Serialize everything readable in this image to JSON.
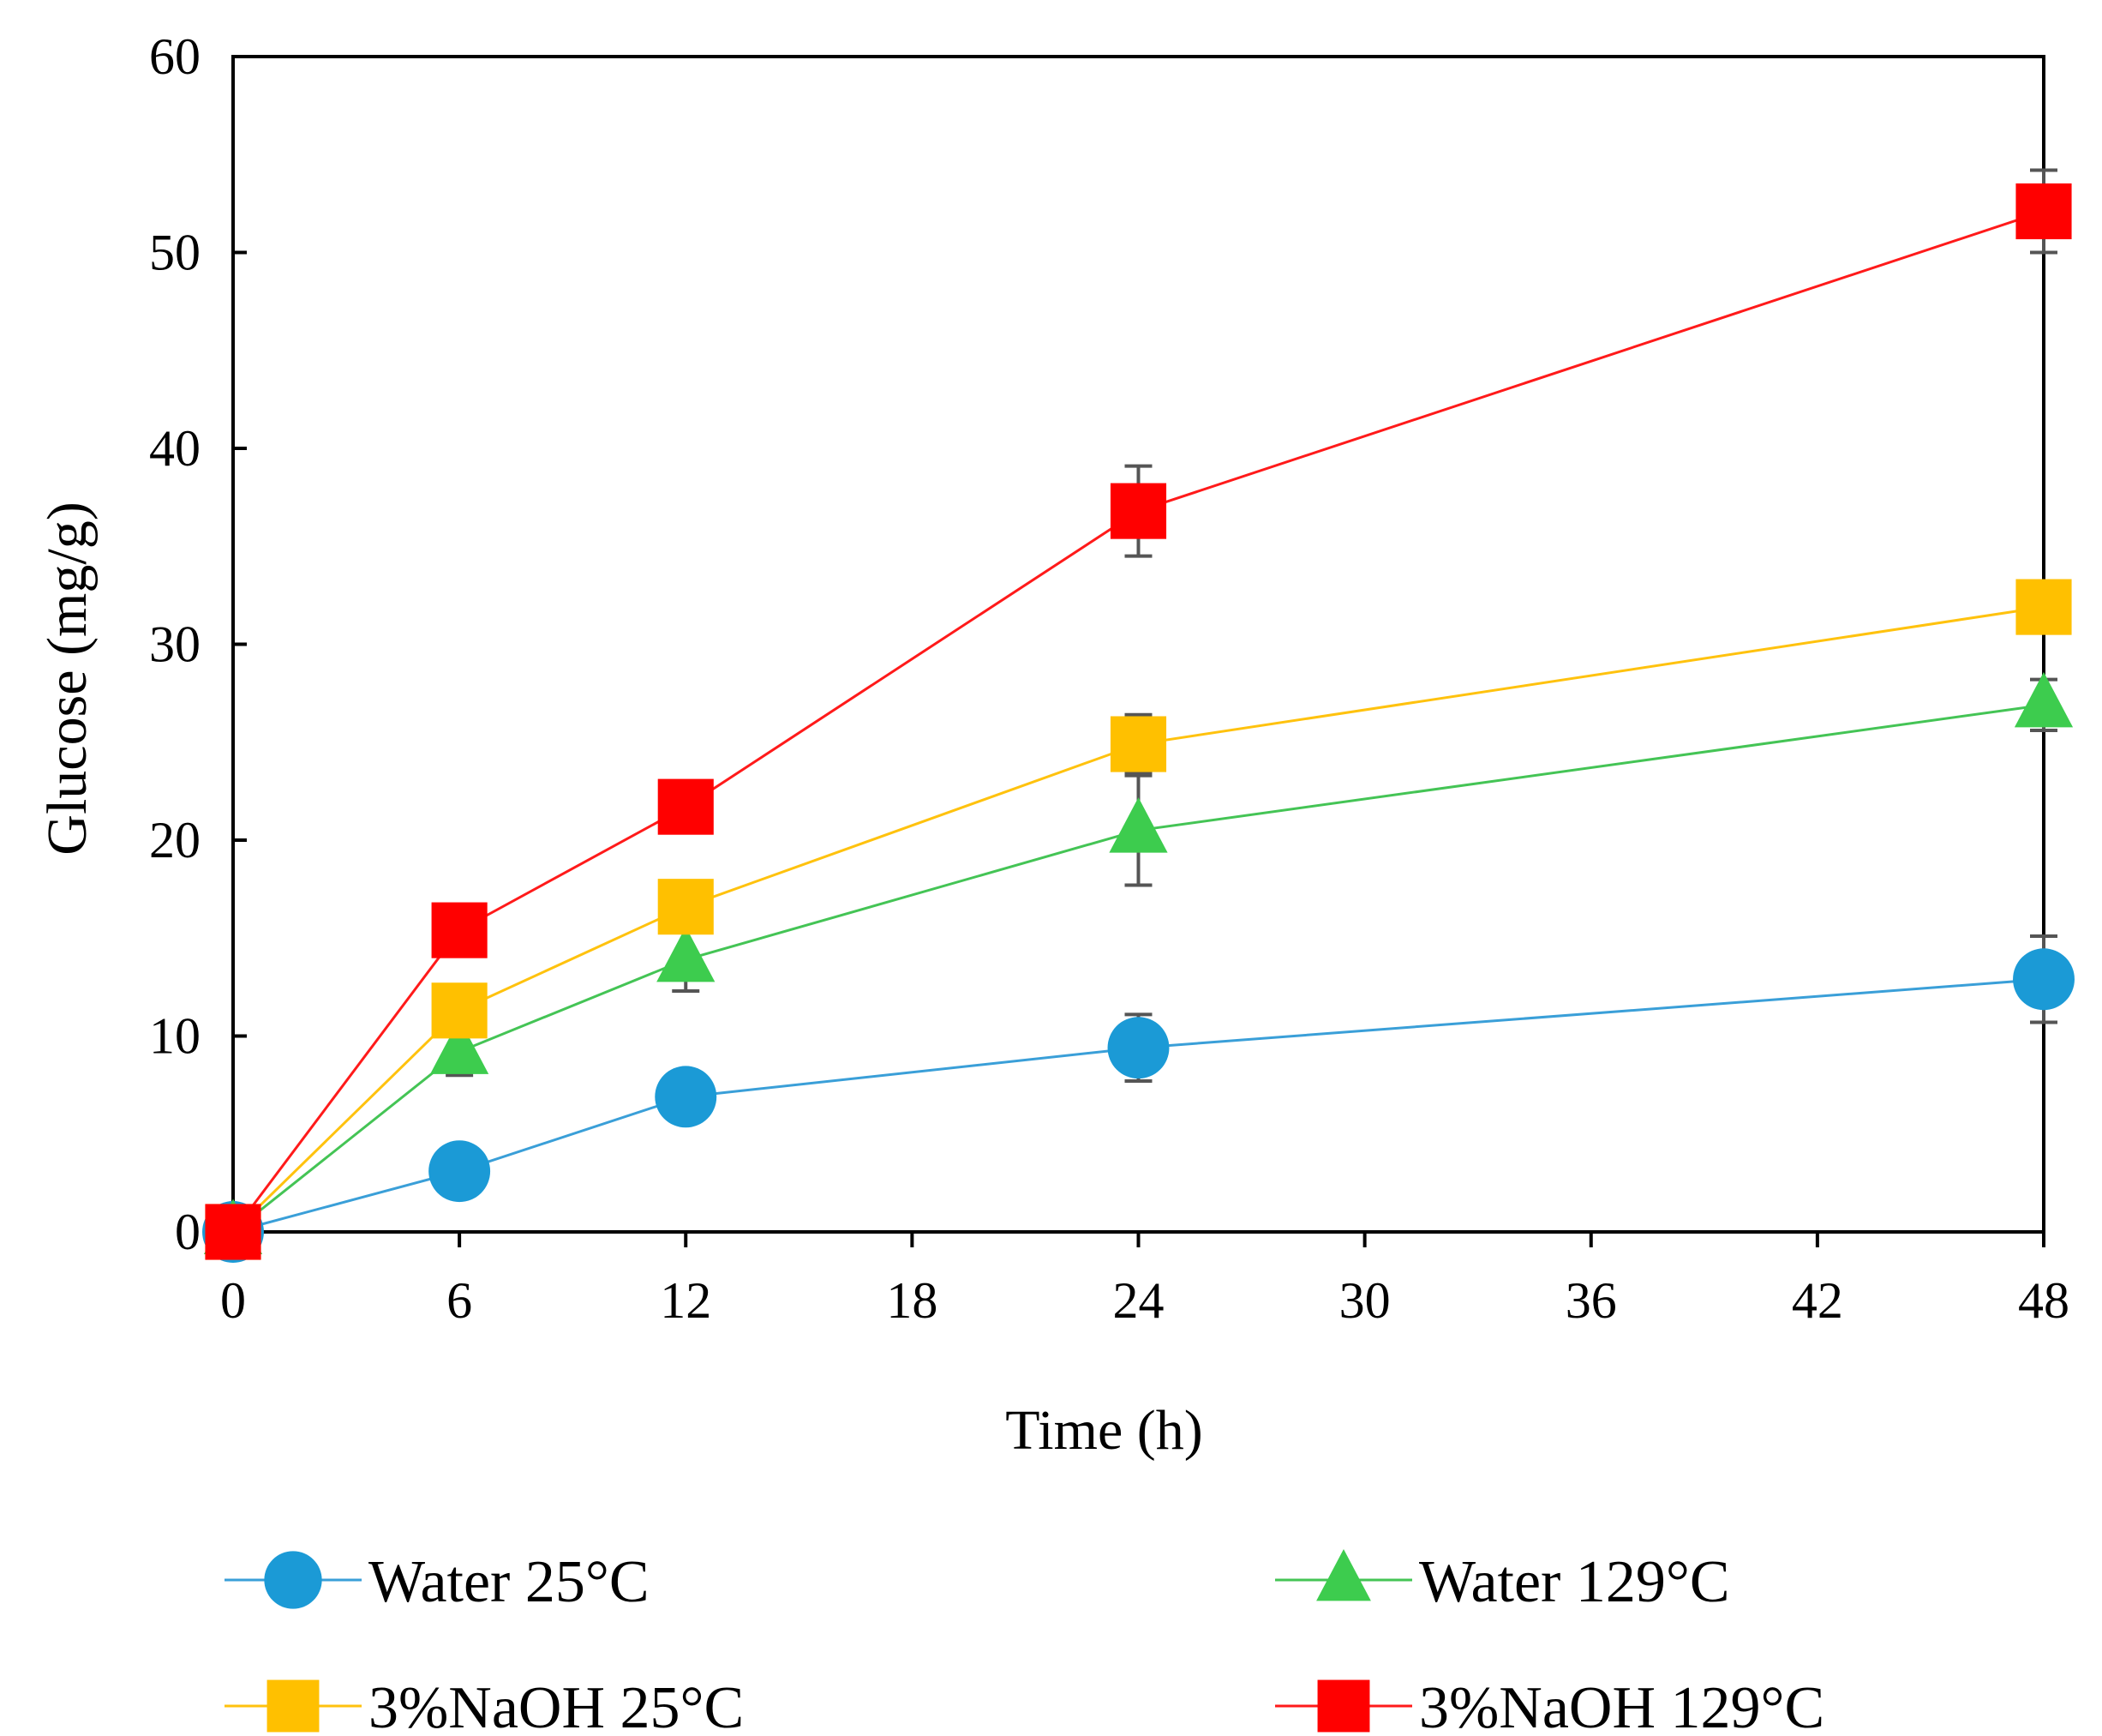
{
  "chart_data": {
    "type": "line",
    "title": "",
    "xlabel": "Time (h)",
    "ylabel": "Glucose (mg/g)",
    "xlim": [
      0,
      48
    ],
    "ylim": [
      0,
      60
    ],
    "xticks": [
      0,
      6,
      12,
      18,
      24,
      30,
      36,
      42,
      48
    ],
    "yticks": [
      0,
      10,
      20,
      30,
      40,
      50,
      60
    ],
    "x": [
      0,
      6,
      12,
      24,
      48
    ],
    "grid": false,
    "legend_position": "bottom",
    "series": [
      {
        "name": "Water 25°C",
        "marker": "circle",
        "color": "#1b9ad6",
        "line_color": "#3a9fd8",
        "values": [
          0,
          3.1,
          6.9,
          9.4,
          12.9
        ],
        "errors": [
          0,
          0,
          1.3,
          1.7,
          2.2
        ]
      },
      {
        "name": "Water 129°C",
        "marker": "triangle",
        "color": "#3dcc4e",
        "line_color": "#44c455",
        "values": [
          0,
          9.2,
          13.9,
          20.5,
          26.9
        ],
        "errors": [
          0,
          1.2,
          1.6,
          2.8,
          1.3
        ]
      },
      {
        "name": "3%NaOH 25°C",
        "marker": "square",
        "color": "#ffc000",
        "line_color": "#ffc20e",
        "values": [
          0,
          11.3,
          16.6,
          24.9,
          31.9
        ],
        "errors": [
          0,
          1.2,
          1.3,
          1.5,
          0.8
        ]
      },
      {
        "name": "3%NaOH 129°C",
        "marker": "square",
        "color": "#ff0000",
        "line_color": "#ff1a1a",
        "values": [
          0,
          15.4,
          21.7,
          36.8,
          52.1
        ],
        "errors": [
          0,
          0.8,
          1.0,
          2.3,
          2.1
        ]
      }
    ]
  }
}
